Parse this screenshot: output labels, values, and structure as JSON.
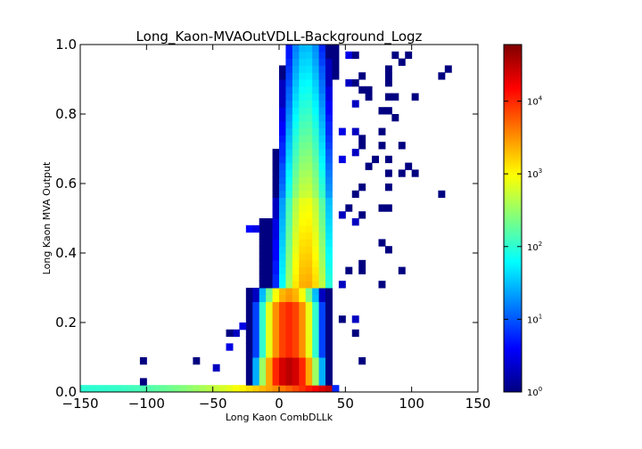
{
  "chart_data": {
    "type": "heatmap",
    "title": "Long_Kaon-MVAOutVDLL-Background_Logz",
    "xlabel": "Long Kaon CombDLLk",
    "ylabel": "Long Kaon MVA Output",
    "xlim": [
      -150,
      150
    ],
    "ylim": [
      0.0,
      1.0
    ],
    "x_ticks": [
      -150,
      -100,
      -50,
      0,
      50,
      100,
      150
    ],
    "x_tick_labels": [
      "−150",
      "−100",
      "−50",
      "0",
      "50",
      "100",
      "150"
    ],
    "y_ticks": [
      0.0,
      0.2,
      0.4,
      0.6,
      0.8,
      1.0
    ],
    "y_tick_labels": [
      "0.0",
      "0.2",
      "0.4",
      "0.6",
      "0.8",
      "1.0"
    ],
    "colorbar": {
      "scale": "log",
      "min": 1,
      "max": 60000,
      "colormap": "jet",
      "ticks": [
        1,
        10,
        100,
        1000,
        10000
      ],
      "tick_labels": [
        {
          "base": "10",
          "exp": "0"
        },
        {
          "base": "10",
          "exp": "1"
        },
        {
          "base": "10",
          "exp": "2"
        },
        {
          "base": "10",
          "exp": "3"
        },
        {
          "base": "10",
          "exp": "4"
        }
      ]
    },
    "x_bin_width": 5,
    "y_bin_width": 0.02,
    "note_data": "bin counts estimated from the colour scale; empty bins omitted"
  }
}
